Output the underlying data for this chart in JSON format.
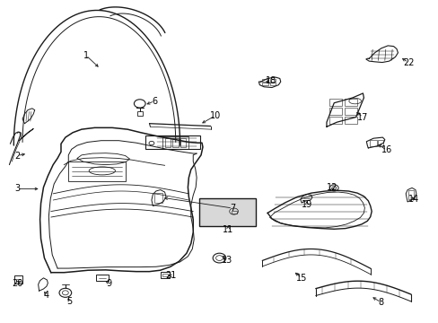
{
  "background_color": "#ffffff",
  "figsize": [
    4.89,
    3.6
  ],
  "dpi": 100,
  "line_color": "#1a1a1a",
  "text_color": "#000000",
  "label_fontsize": 7.0,
  "line_width": 0.8,
  "parts": [
    {
      "num": "1",
      "nx": 0.195,
      "ny": 0.825
    },
    {
      "num": "2",
      "nx": 0.038,
      "ny": 0.52
    },
    {
      "num": "3",
      "nx": 0.038,
      "ny": 0.415
    },
    {
      "num": "4",
      "nx": 0.105,
      "ny": 0.088
    },
    {
      "num": "5",
      "nx": 0.158,
      "ny": 0.068
    },
    {
      "num": "6",
      "nx": 0.34,
      "ny": 0.685
    },
    {
      "num": "7",
      "nx": 0.528,
      "ny": 0.358
    },
    {
      "num": "8",
      "nx": 0.87,
      "ny": 0.065
    },
    {
      "num": "9",
      "nx": 0.248,
      "ny": 0.125
    },
    {
      "num": "10",
      "nx": 0.488,
      "ny": 0.64
    },
    {
      "num": "11",
      "nx": 0.52,
      "ny": 0.29
    },
    {
      "num": "12",
      "nx": 0.758,
      "ny": 0.415
    },
    {
      "num": "13",
      "nx": 0.518,
      "ny": 0.195
    },
    {
      "num": "14",
      "nx": 0.938,
      "ny": 0.385
    },
    {
      "num": "15",
      "nx": 0.688,
      "ny": 0.14
    },
    {
      "num": "16",
      "nx": 0.878,
      "ny": 0.535
    },
    {
      "num": "17",
      "nx": 0.825,
      "ny": 0.64
    },
    {
      "num": "18",
      "nx": 0.618,
      "ny": 0.755
    },
    {
      "num": "19",
      "nx": 0.698,
      "ny": 0.368
    },
    {
      "num": "20",
      "nx": 0.042,
      "ny": 0.125
    },
    {
      "num": "21",
      "nx": 0.388,
      "ny": 0.148
    },
    {
      "num": "22",
      "nx": 0.928,
      "ny": 0.808
    }
  ]
}
